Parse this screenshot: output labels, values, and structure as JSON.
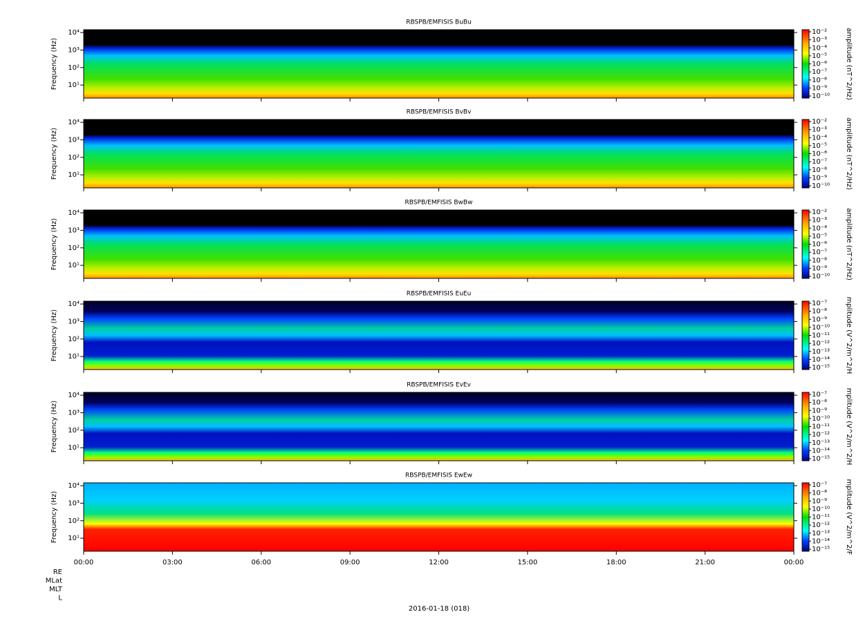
{
  "chart_data": [
    {
      "type": "spectrogram",
      "title": "RBSPB/EMFISIS  BuBu",
      "ylabel": "Frequency (Hz)",
      "ylog": true,
      "ylim": [
        1.8,
        14500
      ],
      "yticks": [
        {
          "value": 10,
          "label": "10¹"
        },
        {
          "value": 100,
          "label": "10²"
        },
        {
          "value": 1000,
          "label": "10³"
        },
        {
          "value": 10000,
          "label": "10⁴"
        }
      ],
      "colorbar_label": "amplitude (nT^2/Hz)",
      "clim": [
        1e-10,
        0.01
      ],
      "colorbar_ticks": [
        {
          "value": 0.01,
          "label": "10⁻²"
        },
        {
          "value": 0.001,
          "label": "10⁻³"
        },
        {
          "value": 0.0001,
          "label": "10⁻⁴"
        },
        {
          "value": 1e-05,
          "label": "10⁻⁵"
        },
        {
          "value": 1e-06,
          "label": "10⁻⁶"
        },
        {
          "value": 1e-07,
          "label": "10⁻⁷"
        },
        {
          "value": 1e-08,
          "label": "10⁻⁸"
        },
        {
          "value": 1e-09,
          "label": "10⁻⁹"
        },
        {
          "value": 1e-10,
          "label": "10⁻¹⁰"
        }
      ]
    },
    {
      "type": "spectrogram",
      "title": "RBSPB/EMFISIS  BvBv",
      "ylabel": "Frequency (Hz)",
      "ylog": true,
      "ylim": [
        1.8,
        14500
      ],
      "yticks": [
        {
          "value": 10,
          "label": "10¹"
        },
        {
          "value": 100,
          "label": "10²"
        },
        {
          "value": 1000,
          "label": "10³"
        },
        {
          "value": 10000,
          "label": "10⁴"
        }
      ],
      "colorbar_label": "amplitude (nT^2/Hz)",
      "clim": [
        1e-10,
        0.01
      ],
      "colorbar_ticks": [
        {
          "value": 0.01,
          "label": "10⁻²"
        },
        {
          "value": 0.001,
          "label": "10⁻³"
        },
        {
          "value": 0.0001,
          "label": "10⁻⁴"
        },
        {
          "value": 1e-05,
          "label": "10⁻⁵"
        },
        {
          "value": 1e-06,
          "label": "10⁻⁶"
        },
        {
          "value": 1e-07,
          "label": "10⁻⁷"
        },
        {
          "value": 1e-08,
          "label": "10⁻⁸"
        },
        {
          "value": 1e-09,
          "label": "10⁻⁹"
        },
        {
          "value": 1e-10,
          "label": "10⁻¹⁰"
        }
      ]
    },
    {
      "type": "spectrogram",
      "title": "RBSPB/EMFISIS  BwBw",
      "ylabel": "Frequency (Hz)",
      "ylog": true,
      "ylim": [
        1.8,
        14500
      ],
      "yticks": [
        {
          "value": 10,
          "label": "10¹"
        },
        {
          "value": 100,
          "label": "10²"
        },
        {
          "value": 1000,
          "label": "10³"
        },
        {
          "value": 10000,
          "label": "10⁴"
        }
      ],
      "colorbar_label": "amplitude (nT^2/Hz)",
      "clim": [
        1e-10,
        0.01
      ],
      "colorbar_ticks": [
        {
          "value": 0.01,
          "label": "10⁻²"
        },
        {
          "value": 0.001,
          "label": "10⁻³"
        },
        {
          "value": 0.0001,
          "label": "10⁻⁴"
        },
        {
          "value": 1e-05,
          "label": "10⁻⁵"
        },
        {
          "value": 1e-06,
          "label": "10⁻⁶"
        },
        {
          "value": 1e-07,
          "label": "10⁻⁷"
        },
        {
          "value": 1e-08,
          "label": "10⁻⁸"
        },
        {
          "value": 1e-09,
          "label": "10⁻⁹"
        },
        {
          "value": 1e-10,
          "label": "10⁻¹⁰"
        }
      ]
    },
    {
      "type": "spectrogram",
      "title": "RBSPB/EMFISIS  EuEu",
      "ylabel": "Frequency (Hz)",
      "ylog": true,
      "ylim": [
        1.8,
        14500
      ],
      "yticks": [
        {
          "value": 10,
          "label": "10¹"
        },
        {
          "value": 100,
          "label": "10²"
        },
        {
          "value": 1000,
          "label": "10³"
        },
        {
          "value": 10000,
          "label": "10⁴"
        }
      ],
      "colorbar_label": "mplitude (V^2/m^2/H",
      "clim": [
        1e-15,
        1e-07
      ],
      "colorbar_ticks": [
        {
          "value": 1e-07,
          "label": "10⁻⁷"
        },
        {
          "value": 1e-08,
          "label": "10⁻⁸"
        },
        {
          "value": 1e-09,
          "label": "10⁻⁹"
        },
        {
          "value": 1e-10,
          "label": "10⁻¹⁰"
        },
        {
          "value": 1e-11,
          "label": "10⁻¹¹"
        },
        {
          "value": 1e-12,
          "label": "10⁻¹²"
        },
        {
          "value": 1e-13,
          "label": "10⁻¹³"
        },
        {
          "value": 1e-14,
          "label": "10⁻¹⁴"
        },
        {
          "value": 1e-15,
          "label": "10⁻¹⁵"
        }
      ]
    },
    {
      "type": "spectrogram",
      "title": "RBSPB/EMFISIS  EvEv",
      "ylabel": "Frequency (Hz)",
      "ylog": true,
      "ylim": [
        1.8,
        14500
      ],
      "yticks": [
        {
          "value": 10,
          "label": "10¹"
        },
        {
          "value": 100,
          "label": "10²"
        },
        {
          "value": 1000,
          "label": "10³"
        },
        {
          "value": 10000,
          "label": "10⁴"
        }
      ],
      "colorbar_label": "mplitude (V^2/m^2/H",
      "clim": [
        1e-15,
        1e-07
      ],
      "colorbar_ticks": [
        {
          "value": 1e-07,
          "label": "10⁻⁷"
        },
        {
          "value": 1e-08,
          "label": "10⁻⁸"
        },
        {
          "value": 1e-09,
          "label": "10⁻⁹"
        },
        {
          "value": 1e-10,
          "label": "10⁻¹⁰"
        },
        {
          "value": 1e-11,
          "label": "10⁻¹¹"
        },
        {
          "value": 1e-12,
          "label": "10⁻¹²"
        },
        {
          "value": 1e-13,
          "label": "10⁻¹³"
        },
        {
          "value": 1e-14,
          "label": "10⁻¹⁴"
        },
        {
          "value": 1e-15,
          "label": "10⁻¹⁵"
        }
      ]
    },
    {
      "type": "spectrogram",
      "title": "RBSPB/EMFISIS  EwEw",
      "ylabel": "Frequency (Hz)",
      "ylog": true,
      "ylim": [
        1.8,
        14500
      ],
      "yticks": [
        {
          "value": 10,
          "label": "10¹"
        },
        {
          "value": 100,
          "label": "10²"
        },
        {
          "value": 1000,
          "label": "10³"
        },
        {
          "value": 10000,
          "label": "10⁴"
        }
      ],
      "colorbar_label": "mplitude (V^2/m^2/F",
      "clim": [
        1e-15,
        1e-07
      ],
      "colorbar_ticks": [
        {
          "value": 1e-07,
          "label": "10⁻⁷"
        },
        {
          "value": 1e-08,
          "label": "10⁻⁸"
        },
        {
          "value": 1e-09,
          "label": "10⁻⁹"
        },
        {
          "value": 1e-10,
          "label": "10⁻¹⁰"
        },
        {
          "value": 1e-11,
          "label": "10⁻¹¹"
        },
        {
          "value": 1e-12,
          "label": "10⁻¹²"
        },
        {
          "value": 1e-13,
          "label": "10⁻¹³"
        },
        {
          "value": 1e-14,
          "label": "10⁻¹⁴"
        },
        {
          "value": 1e-15,
          "label": "10⁻¹⁵"
        }
      ]
    }
  ],
  "time_axis": {
    "xlim": [
      0,
      24
    ],
    "xticks": [
      {
        "value": 0,
        "label": "00:00"
      },
      {
        "value": 3,
        "label": "03:00"
      },
      {
        "value": 6,
        "label": "06:00"
      },
      {
        "value": 9,
        "label": "09:00"
      },
      {
        "value": 12,
        "label": "12:00"
      },
      {
        "value": 15,
        "label": "15:00"
      },
      {
        "value": 18,
        "label": "18:00"
      },
      {
        "value": 21,
        "label": "21:00"
      },
      {
        "value": 24,
        "label": "00:00"
      }
    ],
    "orbit_labels": [
      "RE",
      "MLat",
      "MLT",
      "L"
    ],
    "date": "2016-01-18 (018)"
  }
}
